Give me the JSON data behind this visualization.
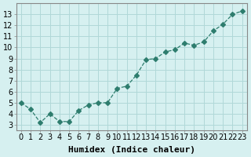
{
  "x": [
    0,
    1,
    2,
    3,
    4,
    5,
    6,
    7,
    8,
    9,
    10,
    11,
    12,
    13,
    14,
    15,
    16,
    17,
    18,
    19,
    20,
    21,
    22,
    23
  ],
  "y": [
    5.0,
    4.4,
    3.2,
    4.0,
    3.3,
    3.3,
    4.3,
    4.8,
    5.0,
    5.0,
    6.3,
    6.5,
    7.5,
    8.9,
    9.0,
    9.6,
    9.8,
    10.4,
    10.2,
    10.5,
    11.5,
    12.1,
    13.0,
    13.3
  ],
  "line_color": "#2e7d6e",
  "marker": "D",
  "marker_size": 3,
  "bg_color": "#d6f0f0",
  "grid_color": "#b0d8d8",
  "xlabel": "Humidex (Indice chaleur)",
  "xlim": [
    -0.5,
    23.5
  ],
  "ylim": [
    2.5,
    14.0
  ],
  "yticks": [
    3,
    4,
    5,
    6,
    7,
    8,
    9,
    10,
    11,
    12,
    13
  ],
  "xticks": [
    0,
    1,
    2,
    3,
    4,
    5,
    6,
    7,
    8,
    9,
    10,
    11,
    12,
    13,
    14,
    15,
    16,
    17,
    18,
    19,
    20,
    21,
    22,
    23
  ],
  "xlabel_fontsize": 8,
  "tick_fontsize": 7,
  "line_width": 0.9
}
